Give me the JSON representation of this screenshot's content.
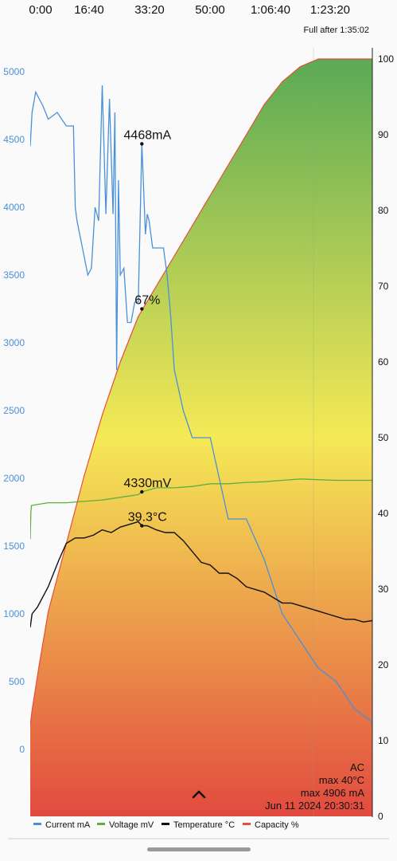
{
  "header": {
    "time_ticks": [
      "0:00",
      "16:40",
      "33:20",
      "50:00",
      "1:06:40",
      "1:23:20"
    ],
    "full_after": "Full after 1:35:02"
  },
  "info_box": {
    "source": "AC",
    "max_temp": "max 40°C",
    "max_current": "max 4906 mA",
    "timestamp": "Jun 11 2024 20:30:31"
  },
  "markers": {
    "current": "4468mA",
    "capacity": "67%",
    "voltage": "4330mV",
    "temperature": "39.3°C"
  },
  "legend": [
    {
      "label": "Current mA",
      "color": "#4a90d9"
    },
    {
      "label": "Voltage mV",
      "color": "#5cb040"
    },
    {
      "label": "Temperature °C",
      "color": "#111111"
    },
    {
      "label": "Capacity %",
      "color": "#e84c3d"
    }
  ],
  "colors": {
    "current": "#4a90d9",
    "voltage": "#5cb040",
    "temperature": "#111111",
    "capacity_line": "#e84c3d",
    "gradient_top": "#5aaa55",
    "gradient_mid": "#f5e956",
    "gradient_bottom": "#e24a3f",
    "left_axis_text": "#4a90d9"
  },
  "icons": {
    "expand": "chevron-up-icon"
  },
  "chart_data": {
    "type": "line",
    "x_unit": "seconds",
    "x_range": [
      0,
      5700
    ],
    "x_ticks": [
      "0:00",
      "16:40",
      "33:20",
      "50:00",
      "1:06:40",
      "1:23:20"
    ],
    "left_axis": {
      "ticks": [
        "0",
        "500",
        "1000",
        "1500",
        "2000",
        "2500",
        "3000",
        "3500",
        "4000",
        "4500",
        "5000"
      ],
      "range": [
        -400,
        5200
      ]
    },
    "right_axis": {
      "ticks": [
        "0",
        "10",
        "20",
        "30",
        "40",
        "50",
        "60",
        "70",
        "80",
        "90",
        "100"
      ],
      "range": [
        0,
        100
      ]
    },
    "series": [
      {
        "name": "Capacity %",
        "axis": "right",
        "x": [
          0,
          30,
          150,
          300,
          600,
          900,
          1200,
          1500,
          1800,
          2100,
          2400,
          2700,
          3000,
          3300,
          3600,
          3900,
          4200,
          4500,
          4800,
          5100,
          5400,
          5700
        ],
        "y": [
          12,
          14,
          20,
          27,
          36,
          45,
          53,
          60,
          66,
          70,
          74,
          78,
          82,
          86,
          90,
          94,
          97,
          99,
          100,
          100,
          100,
          100
        ]
      },
      {
        "name": "Current mA",
        "axis": "left",
        "x": [
          0,
          30,
          90,
          150,
          210,
          300,
          450,
          600,
          720,
          750,
          780,
          960,
          1020,
          1080,
          1140,
          1200,
          1260,
          1320,
          1380,
          1410,
          1440,
          1470,
          1500,
          1560,
          1620,
          1680,
          1740,
          1800,
          1860,
          1920,
          1950,
          1980,
          2040,
          2100,
          2160,
          2220,
          2280,
          2340,
          2400,
          2550,
          2700,
          3000,
          3150,
          3300,
          3600,
          3900,
          4200,
          4500,
          4800,
          5100,
          5400,
          5700
        ],
        "y": [
          4450,
          4700,
          4850,
          4800,
          4750,
          4650,
          4700,
          4600,
          4600,
          4000,
          3900,
          3500,
          3550,
          4000,
          3900,
          4900,
          3950,
          4800,
          3950,
          4700,
          2800,
          4200,
          3500,
          3550,
          3150,
          3150,
          3300,
          3300,
          4468,
          3800,
          3950,
          3900,
          3700,
          3700,
          3700,
          3700,
          3500,
          3200,
          2800,
          2500,
          2300,
          2300,
          2000,
          1700,
          1700,
          1400,
          1000,
          800,
          600,
          500,
          300,
          200
        ]
      },
      {
        "name": "Voltage mV",
        "axis": "left",
        "x": [
          0,
          10,
          20,
          300,
          600,
          900,
          1200,
          1500,
          1800,
          1860,
          2100,
          2400,
          2700,
          3000,
          3300,
          3600,
          3900,
          4200,
          4500,
          4800,
          5100,
          5400,
          5700
        ],
        "y": [
          1550,
          1750,
          1800,
          1820,
          1820,
          1830,
          1840,
          1860,
          1880,
          1900,
          1930,
          1930,
          1940,
          1960,
          1960,
          1970,
          1975,
          1985,
          1995,
          1990,
          1985,
          1985,
          1985
        ]
      },
      {
        "name": "Temperature °C",
        "axis": "left",
        "x": [
          0,
          30,
          120,
          300,
          480,
          600,
          750,
          900,
          1050,
          1200,
          1350,
          1500,
          1650,
          1800,
          1860,
          1950,
          2100,
          2250,
          2400,
          2550,
          2700,
          2850,
          3000,
          3150,
          3300,
          3450,
          3600,
          3750,
          3900,
          4050,
          4200,
          4350,
          4500,
          4650,
          4800,
          4950,
          5100,
          5250,
          5400,
          5550,
          5700
        ],
        "y": [
          900,
          1000,
          1050,
          1200,
          1400,
          1520,
          1560,
          1560,
          1580,
          1620,
          1600,
          1640,
          1660,
          1680,
          1650,
          1650,
          1620,
          1600,
          1600,
          1540,
          1460,
          1380,
          1360,
          1300,
          1300,
          1260,
          1200,
          1180,
          1160,
          1120,
          1080,
          1080,
          1060,
          1040,
          1020,
          1000,
          980,
          960,
          960,
          940,
          950
        ]
      }
    ]
  }
}
